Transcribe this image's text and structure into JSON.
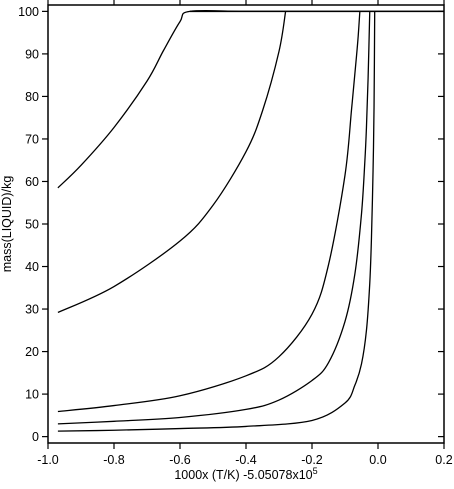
{
  "chart_data": {
    "type": "line",
    "title": "",
    "xlabel": "1000x (T/K) -5.05078x10",
    "xlabel_superscript": "5",
    "ylabel": "mass(LIQUID)/kg",
    "xlim": [
      -1.0,
      0.2
    ],
    "ylim": [
      -1.5,
      101.5
    ],
    "xticks": [
      -1.0,
      -0.8,
      -0.6,
      -0.4,
      -0.2,
      0.0,
      0.2
    ],
    "xtick_labels": [
      "-1.0",
      "-0.8",
      "-0.6",
      "-0.4",
      "-0.2",
      "0.0",
      "0.2"
    ],
    "yticks": [
      0,
      10,
      20,
      30,
      40,
      50,
      60,
      70,
      80,
      90,
      100
    ],
    "ytick_labels": [
      "0",
      "10",
      "20",
      "30",
      "40",
      "50",
      "60",
      "70",
      "80",
      "90",
      "100"
    ],
    "grid": false,
    "legend": "none",
    "line_color": "#000000",
    "series": [
      {
        "x": [
          -0.97,
          -0.9,
          -0.8,
          -0.7,
          -0.65,
          -0.6,
          -0.57,
          -0.4,
          -0.2,
          0.0,
          0.2
        ],
        "y": [
          58.5,
          63.8,
          72.7,
          83.6,
          90.8,
          97.6,
          100.0,
          100.0,
          100.0,
          100.0,
          100.0
        ]
      },
      {
        "x": [
          -0.97,
          -0.8,
          -0.6,
          -0.5,
          -0.4,
          -0.35,
          -0.3,
          -0.28
        ],
        "y": [
          29.2,
          35.3,
          46.0,
          54.4,
          67.0,
          76.6,
          90.6,
          100.0
        ]
      },
      {
        "x": [
          -0.97,
          -0.8,
          -0.6,
          -0.4,
          -0.3,
          -0.2,
          -0.15,
          -0.1,
          -0.08,
          -0.065,
          -0.06,
          -0.055
        ],
        "y": [
          5.9,
          7.3,
          9.6,
          14.3,
          18.8,
          28.8,
          40.4,
          61.5,
          77.1,
          89.6,
          94.2,
          100.0
        ]
      },
      {
        "x": [
          -0.97,
          -0.8,
          -0.6,
          -0.4,
          -0.3,
          -0.2,
          -0.15,
          -0.1,
          -0.07,
          -0.05,
          -0.04,
          -0.035,
          -0.03,
          -0.025
        ],
        "y": [
          3.0,
          3.6,
          4.5,
          6.4,
          8.6,
          13.2,
          17.4,
          27.1,
          38.3,
          52.4,
          64.5,
          72.7,
          84.3,
          100.0
        ]
      },
      {
        "x": [
          -0.97,
          -0.8,
          -0.6,
          -0.4,
          -0.2,
          -0.1,
          -0.07,
          -0.05,
          -0.035,
          -0.025,
          -0.02,
          -0.015,
          -0.012,
          -0.01
        ],
        "y": [
          1.3,
          1.5,
          1.9,
          2.4,
          3.8,
          7.9,
          12.1,
          17.1,
          25.0,
          36.0,
          46.2,
          62.5,
          77.5,
          100.0
        ]
      }
    ]
  }
}
